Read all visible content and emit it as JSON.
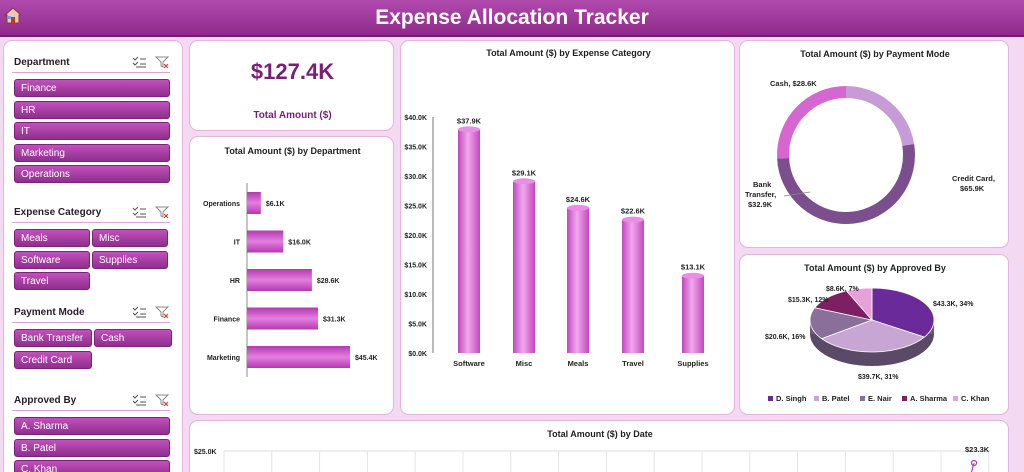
{
  "header": {
    "title": "Expense Allocation Tracker",
    "home_icon": "home-icon"
  },
  "slicers": [
    {
      "title": "Department",
      "items": [
        "Finance",
        "HR",
        "IT",
        "Marketing",
        "Operations"
      ]
    },
    {
      "title": "Expense Category",
      "items": [
        "Meals",
        "Misc",
        "Software",
        "Supplies",
        "Travel"
      ]
    },
    {
      "title": "Payment Mode",
      "items": [
        "Bank Transfer",
        "Cash",
        "Credit Card"
      ]
    },
    {
      "title": "Approved By",
      "items": [
        "A. Sharma",
        "B. Patel",
        "C. Khan"
      ]
    }
  ],
  "kpi": {
    "value": "$127.4K",
    "label": "Total Amount ($)"
  },
  "colors": {
    "accent": "#9a2f97",
    "header": "#a03c9c",
    "bar": "#d25fcf",
    "background": "#f3d9f1"
  },
  "chart_data": [
    {
      "type": "bar",
      "orientation": "horizontal",
      "title": "Total Amount ($) by Department",
      "categories": [
        "Operations",
        "IT",
        "HR",
        "Finance",
        "Marketing"
      ],
      "values": [
        6.1,
        16.0,
        28.6,
        31.3,
        45.4
      ],
      "labels": [
        "$6.1K",
        "$16.0K",
        "$28.6K",
        "$31.3K",
        "$45.4K"
      ]
    },
    {
      "type": "bar",
      "title": "Total Amount ($) by Expense Category",
      "categories": [
        "Software",
        "Misc",
        "Meals",
        "Travel",
        "Supplies"
      ],
      "values": [
        37.9,
        29.1,
        24.6,
        22.6,
        13.1
      ],
      "labels": [
        "$37.9K",
        "$29.1K",
        "$24.6K",
        "$22.6K",
        "$13.1K"
      ],
      "yticks": [
        "$0.0K",
        "$5.0K",
        "$10.0K",
        "$15.0K",
        "$20.0K",
        "$25.0K",
        "$30.0K",
        "$35.0K",
        "$40.0K"
      ],
      "ylim": [
        0,
        40
      ]
    },
    {
      "type": "pie",
      "style": "donut",
      "title": "Total Amount ($) by Payment Mode",
      "categories": [
        "Cash",
        "Credit Card",
        "Bank Transfer"
      ],
      "values": [
        28.6,
        65.9,
        32.9
      ],
      "labels": [
        "Cash, $28.6K",
        "Credit Card, $65.9K",
        "Bank Transfer, $32.9K"
      ]
    },
    {
      "type": "pie",
      "style": "3d",
      "title": "Total Amount ($) by Approved By",
      "categories": [
        "D. Singh",
        "B. Patel",
        "E. Nair",
        "A. Sharma",
        "C. Khan"
      ],
      "values": [
        43.3,
        39.7,
        20.6,
        15.3,
        8.6
      ],
      "labels": [
        "$43.3K, 34%",
        "$39.7K, 31%",
        "$20.6K, 16%",
        "$15.3K, 12%",
        "$8.6K, 7%"
      ],
      "legend": [
        "D. Singh",
        "B. Patel",
        "E. Nair",
        "A. Sharma",
        "C. Khan"
      ],
      "legend_position": "bottom"
    },
    {
      "type": "line",
      "title": "Total Amount ($) by Date",
      "ytick_top": "$25.0K",
      "last_label": "$23.3K",
      "last_value": 23.3
    }
  ]
}
